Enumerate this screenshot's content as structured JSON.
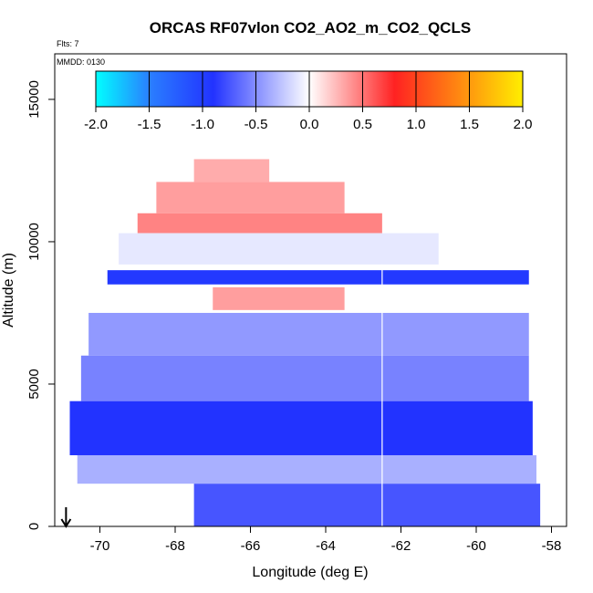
{
  "chart_data": {
    "type": "heatmap",
    "title": "ORCAS RF07vlon CO2_AO2_m_CO2_QCLS",
    "subtitle_flts": "Flts: 7",
    "subtitle_mmdd": "MMDD: 0130",
    "xlabel": "Longitude (deg E)",
    "ylabel": "Altitude (m)",
    "xlim": [
      -71.2,
      -57.6
    ],
    "ylim": [
      0,
      16600
    ],
    "x_ticks": [
      -70,
      -68,
      -66,
      -64,
      -62,
      -60,
      -58
    ],
    "x_tick_labels": [
      "-70",
      "-68",
      "-66",
      "-64",
      "-62",
      "-60",
      "-58"
    ],
    "y_ticks": [
      0,
      5000,
      10000,
      15000
    ],
    "y_tick_labels": [
      "0",
      "5000",
      "10000",
      "15000"
    ],
    "colorbar": {
      "range": [
        -2.0,
        2.0
      ],
      "ticks": [
        -2.0,
        -1.5,
        -1.0,
        -0.5,
        0.0,
        0.5,
        1.0,
        1.5,
        2.0
      ],
      "tick_labels": [
        "-2.0",
        "-1.5",
        "-1.0",
        "-0.5",
        "0.0",
        "0.5",
        "1.0",
        "1.5",
        "2.0"
      ],
      "colors": [
        "#00ffff",
        "#2a7fff",
        "#2233ff",
        "#ffffff",
        "#ff2222",
        "#ffee00"
      ]
    },
    "curtain_x_extent": [
      -70.8,
      -58.3
    ],
    "curtain_y_extent": [
      0,
      12900
    ],
    "vertical_line_lon": -62.5,
    "bands": [
      {
        "alt": [
          12100,
          12900
        ],
        "lon": [
          -67.5,
          -65.5
        ],
        "value": 0.3
      },
      {
        "alt": [
          11000,
          12100
        ],
        "lon": [
          -68.5,
          -63.5
        ],
        "value": 0.35
      },
      {
        "alt": [
          10300,
          11000
        ],
        "lon": [
          -69.0,
          -62.5
        ],
        "value": 0.45
      },
      {
        "alt": [
          9200,
          10300
        ],
        "lon": [
          -69.5,
          -61.0
        ],
        "value": -0.1
      },
      {
        "alt": [
          8500,
          9000
        ],
        "lon": [
          -69.8,
          -58.6
        ],
        "value": -0.95
      },
      {
        "alt": [
          7600,
          8400
        ],
        "lon": [
          -67.0,
          -63.5
        ],
        "value": 0.35
      },
      {
        "alt": [
          6000,
          7500
        ],
        "lon": [
          -70.3,
          -58.6
        ],
        "value": -0.45
      },
      {
        "alt": [
          4400,
          6000
        ],
        "lon": [
          -70.5,
          -58.6
        ],
        "value": -0.55
      },
      {
        "alt": [
          2500,
          4400
        ],
        "lon": [
          -70.8,
          -58.5
        ],
        "value": -0.9
      },
      {
        "alt": [
          1500,
          2500
        ],
        "lon": [
          -70.6,
          -58.4
        ],
        "value": -0.35
      },
      {
        "alt": [
          0,
          1500
        ],
        "lon": [
          -67.5,
          -58.3
        ],
        "value": -0.75
      }
    ],
    "arrow_lon": -70.9
  }
}
